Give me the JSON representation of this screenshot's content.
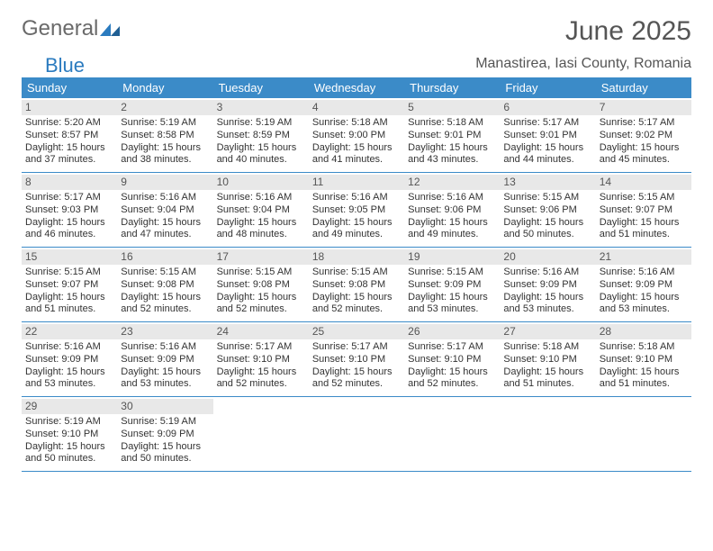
{
  "colors": {
    "header_blue": "#3b8bc8",
    "logo_blue": "#2b7bbf",
    "logo_gray": "#6a6a6a",
    "text": "#333333",
    "daynum_bg": "#e8e8e8",
    "border": "#3b8bc8",
    "background": "#ffffff"
  },
  "logo": {
    "general": "General",
    "blue": "Blue"
  },
  "title": "June 2025",
  "location": "Manastirea, Iasi County, Romania",
  "weekday_headers": [
    "Sunday",
    "Monday",
    "Tuesday",
    "Wednesday",
    "Thursday",
    "Friday",
    "Saturday"
  ],
  "weeks": [
    [
      {
        "num": "1",
        "sunrise": "Sunrise: 5:20 AM",
        "sunset": "Sunset: 8:57 PM",
        "day1": "Daylight: 15 hours",
        "day2": "and 37 minutes."
      },
      {
        "num": "2",
        "sunrise": "Sunrise: 5:19 AM",
        "sunset": "Sunset: 8:58 PM",
        "day1": "Daylight: 15 hours",
        "day2": "and 38 minutes."
      },
      {
        "num": "3",
        "sunrise": "Sunrise: 5:19 AM",
        "sunset": "Sunset: 8:59 PM",
        "day1": "Daylight: 15 hours",
        "day2": "and 40 minutes."
      },
      {
        "num": "4",
        "sunrise": "Sunrise: 5:18 AM",
        "sunset": "Sunset: 9:00 PM",
        "day1": "Daylight: 15 hours",
        "day2": "and 41 minutes."
      },
      {
        "num": "5",
        "sunrise": "Sunrise: 5:18 AM",
        "sunset": "Sunset: 9:01 PM",
        "day1": "Daylight: 15 hours",
        "day2": "and 43 minutes."
      },
      {
        "num": "6",
        "sunrise": "Sunrise: 5:17 AM",
        "sunset": "Sunset: 9:01 PM",
        "day1": "Daylight: 15 hours",
        "day2": "and 44 minutes."
      },
      {
        "num": "7",
        "sunrise": "Sunrise: 5:17 AM",
        "sunset": "Sunset: 9:02 PM",
        "day1": "Daylight: 15 hours",
        "day2": "and 45 minutes."
      }
    ],
    [
      {
        "num": "8",
        "sunrise": "Sunrise: 5:17 AM",
        "sunset": "Sunset: 9:03 PM",
        "day1": "Daylight: 15 hours",
        "day2": "and 46 minutes."
      },
      {
        "num": "9",
        "sunrise": "Sunrise: 5:16 AM",
        "sunset": "Sunset: 9:04 PM",
        "day1": "Daylight: 15 hours",
        "day2": "and 47 minutes."
      },
      {
        "num": "10",
        "sunrise": "Sunrise: 5:16 AM",
        "sunset": "Sunset: 9:04 PM",
        "day1": "Daylight: 15 hours",
        "day2": "and 48 minutes."
      },
      {
        "num": "11",
        "sunrise": "Sunrise: 5:16 AM",
        "sunset": "Sunset: 9:05 PM",
        "day1": "Daylight: 15 hours",
        "day2": "and 49 minutes."
      },
      {
        "num": "12",
        "sunrise": "Sunrise: 5:16 AM",
        "sunset": "Sunset: 9:06 PM",
        "day1": "Daylight: 15 hours",
        "day2": "and 49 minutes."
      },
      {
        "num": "13",
        "sunrise": "Sunrise: 5:15 AM",
        "sunset": "Sunset: 9:06 PM",
        "day1": "Daylight: 15 hours",
        "day2": "and 50 minutes."
      },
      {
        "num": "14",
        "sunrise": "Sunrise: 5:15 AM",
        "sunset": "Sunset: 9:07 PM",
        "day1": "Daylight: 15 hours",
        "day2": "and 51 minutes."
      }
    ],
    [
      {
        "num": "15",
        "sunrise": "Sunrise: 5:15 AM",
        "sunset": "Sunset: 9:07 PM",
        "day1": "Daylight: 15 hours",
        "day2": "and 51 minutes."
      },
      {
        "num": "16",
        "sunrise": "Sunrise: 5:15 AM",
        "sunset": "Sunset: 9:08 PM",
        "day1": "Daylight: 15 hours",
        "day2": "and 52 minutes."
      },
      {
        "num": "17",
        "sunrise": "Sunrise: 5:15 AM",
        "sunset": "Sunset: 9:08 PM",
        "day1": "Daylight: 15 hours",
        "day2": "and 52 minutes."
      },
      {
        "num": "18",
        "sunrise": "Sunrise: 5:15 AM",
        "sunset": "Sunset: 9:08 PM",
        "day1": "Daylight: 15 hours",
        "day2": "and 52 minutes."
      },
      {
        "num": "19",
        "sunrise": "Sunrise: 5:15 AM",
        "sunset": "Sunset: 9:09 PM",
        "day1": "Daylight: 15 hours",
        "day2": "and 53 minutes."
      },
      {
        "num": "20",
        "sunrise": "Sunrise: 5:16 AM",
        "sunset": "Sunset: 9:09 PM",
        "day1": "Daylight: 15 hours",
        "day2": "and 53 minutes."
      },
      {
        "num": "21",
        "sunrise": "Sunrise: 5:16 AM",
        "sunset": "Sunset: 9:09 PM",
        "day1": "Daylight: 15 hours",
        "day2": "and 53 minutes."
      }
    ],
    [
      {
        "num": "22",
        "sunrise": "Sunrise: 5:16 AM",
        "sunset": "Sunset: 9:09 PM",
        "day1": "Daylight: 15 hours",
        "day2": "and 53 minutes."
      },
      {
        "num": "23",
        "sunrise": "Sunrise: 5:16 AM",
        "sunset": "Sunset: 9:09 PM",
        "day1": "Daylight: 15 hours",
        "day2": "and 53 minutes."
      },
      {
        "num": "24",
        "sunrise": "Sunrise: 5:17 AM",
        "sunset": "Sunset: 9:10 PM",
        "day1": "Daylight: 15 hours",
        "day2": "and 52 minutes."
      },
      {
        "num": "25",
        "sunrise": "Sunrise: 5:17 AM",
        "sunset": "Sunset: 9:10 PM",
        "day1": "Daylight: 15 hours",
        "day2": "and 52 minutes."
      },
      {
        "num": "26",
        "sunrise": "Sunrise: 5:17 AM",
        "sunset": "Sunset: 9:10 PM",
        "day1": "Daylight: 15 hours",
        "day2": "and 52 minutes."
      },
      {
        "num": "27",
        "sunrise": "Sunrise: 5:18 AM",
        "sunset": "Sunset: 9:10 PM",
        "day1": "Daylight: 15 hours",
        "day2": "and 51 minutes."
      },
      {
        "num": "28",
        "sunrise": "Sunrise: 5:18 AM",
        "sunset": "Sunset: 9:10 PM",
        "day1": "Daylight: 15 hours",
        "day2": "and 51 minutes."
      }
    ],
    [
      {
        "num": "29",
        "sunrise": "Sunrise: 5:19 AM",
        "sunset": "Sunset: 9:10 PM",
        "day1": "Daylight: 15 hours",
        "day2": "and 50 minutes."
      },
      {
        "num": "30",
        "sunrise": "Sunrise: 5:19 AM",
        "sunset": "Sunset: 9:09 PM",
        "day1": "Daylight: 15 hours",
        "day2": "and 50 minutes."
      },
      null,
      null,
      null,
      null,
      null
    ]
  ]
}
